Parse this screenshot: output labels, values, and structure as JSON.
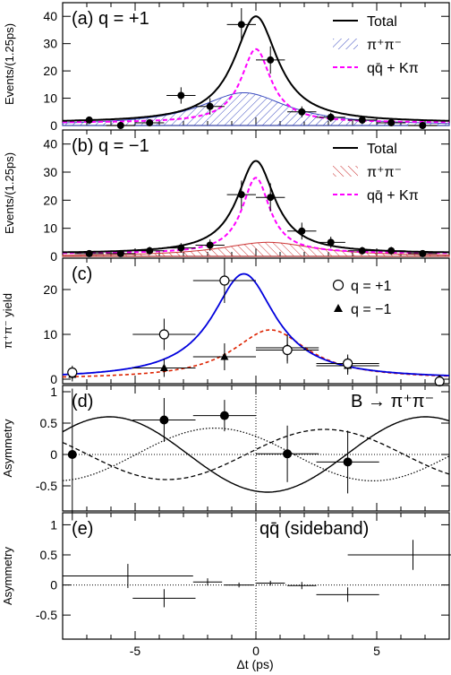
{
  "figure": {
    "xlabel": "Δt (ps)",
    "x_ticks": [
      "-5",
      "0",
      "5"
    ],
    "colors": {
      "total": "#000000",
      "pipi": "#3b4cc0",
      "pipi_b": "#cc3333",
      "bkg": "#ff00ff",
      "q_plus": "#0000dd",
      "q_minus": "#dd2200"
    }
  },
  "chart_data": [
    {
      "id": "a",
      "type": "scatter",
      "title": "(a) q = +1",
      "ylabel": "Events/(1.25ps)",
      "xlim": [
        -8,
        8
      ],
      "ylim": [
        0,
        45
      ],
      "y_ticks": [
        "0",
        "10",
        "20",
        "30",
        "40"
      ],
      "legend": {
        "position": "top-right",
        "entries": [
          "Total",
          "π⁺π⁻",
          "qq̄ + Kπ"
        ]
      },
      "points": [
        {
          "x": -6.9,
          "y": 2,
          "ex": 0.6,
          "ey": 1
        },
        {
          "x": -5.6,
          "y": 0,
          "ex": 0.6,
          "ey": 0.6
        },
        {
          "x": -4.4,
          "y": 1,
          "ex": 0.6,
          "ey": 1
        },
        {
          "x": -3.1,
          "y": 11,
          "ex": 0.6,
          "ey": 3
        },
        {
          "x": -1.9,
          "y": 7,
          "ex": 0.6,
          "ey": 3
        },
        {
          "x": -0.6,
          "y": 37,
          "ex": 0.6,
          "ey": 6
        },
        {
          "x": 0.6,
          "y": 24,
          "ex": 0.6,
          "ey": 5
        },
        {
          "x": 1.9,
          "y": 5,
          "ex": 0.6,
          "ey": 2
        },
        {
          "x": 3.1,
          "y": 3,
          "ex": 0.6,
          "ey": 1.7
        },
        {
          "x": 4.4,
          "y": 2,
          "ex": 0.6,
          "ey": 1.4
        },
        {
          "x": 5.6,
          "y": 1,
          "ex": 0.6,
          "ey": 1
        },
        {
          "x": 6.9,
          "y": 0,
          "ex": 0.6,
          "ey": 0.6
        }
      ],
      "curves": {
        "total": {
          "peak": 39,
          "center": 0,
          "width": 1.1,
          "base": 1
        },
        "pipi": {
          "peak": 12,
          "center": -0.5,
          "width": 2.2,
          "base": 0
        },
        "bkg": {
          "peak": 27,
          "center": 0,
          "width": 0.75,
          "base": 1
        }
      }
    },
    {
      "id": "b",
      "type": "scatter",
      "title": "(b) q = −1",
      "ylabel": "Events/(1.25ps)",
      "xlim": [
        -8,
        8
      ],
      "ylim": [
        0,
        45
      ],
      "y_ticks": [
        "0",
        "10",
        "20",
        "30",
        "40"
      ],
      "legend": {
        "position": "top-right",
        "entries": [
          "Total",
          "π⁺π⁻",
          "qq̄ + Kπ"
        ]
      },
      "points": [
        {
          "x": -6.9,
          "y": 1,
          "ex": 0.6,
          "ey": 1
        },
        {
          "x": -5.6,
          "y": 1,
          "ex": 0.6,
          "ey": 1
        },
        {
          "x": -4.4,
          "y": 2,
          "ex": 0.6,
          "ey": 1.4
        },
        {
          "x": -3.1,
          "y": 3,
          "ex": 0.6,
          "ey": 1.7
        },
        {
          "x": -1.9,
          "y": 4,
          "ex": 0.6,
          "ey": 2
        },
        {
          "x": -0.6,
          "y": 22,
          "ex": 0.6,
          "ey": 5
        },
        {
          "x": 0.6,
          "y": 21,
          "ex": 0.6,
          "ey": 5
        },
        {
          "x": 1.9,
          "y": 9,
          "ex": 0.6,
          "ey": 3
        },
        {
          "x": 3.1,
          "y": 5,
          "ex": 0.6,
          "ey": 2
        },
        {
          "x": 4.4,
          "y": 2,
          "ex": 0.6,
          "ey": 1.4
        },
        {
          "x": 5.6,
          "y": 2,
          "ex": 0.6,
          "ey": 1.4
        },
        {
          "x": 6.9,
          "y": 1,
          "ex": 0.6,
          "ey": 1
        }
      ],
      "curves": {
        "total": {
          "peak": 33,
          "center": 0,
          "width": 0.95,
          "base": 1
        },
        "pipi": {
          "peak": 5,
          "center": 0.5,
          "width": 2.4,
          "base": 0
        },
        "bkg": {
          "peak": 27,
          "center": 0,
          "width": 0.7,
          "base": 1
        }
      }
    },
    {
      "id": "c",
      "type": "scatter",
      "title": "(c)",
      "ylabel": "π⁺π⁻ yield",
      "xlim": [
        -8,
        8
      ],
      "ylim": [
        -1,
        27
      ],
      "y_ticks": [
        "0",
        "10",
        "20"
      ],
      "legend": {
        "position": "top-right",
        "entries": [
          "q = +1",
          "q = −1"
        ]
      },
      "points_open": [
        {
          "x": -7.6,
          "y": 1.5,
          "ex": 0,
          "ey": 1.5
        },
        {
          "x": -3.8,
          "y": 10,
          "ex": 1.3,
          "ey": 3.5
        },
        {
          "x": -1.3,
          "y": 22,
          "ex": 1.3,
          "ey": 5
        },
        {
          "x": 1.3,
          "y": 6.5,
          "ex": 1.3,
          "ey": 3
        },
        {
          "x": 3.8,
          "y": 3.5,
          "ex": 1.3,
          "ey": 2
        },
        {
          "x": 7.6,
          "y": -0.5,
          "ex": 0,
          "ey": 0.8
        }
      ],
      "points_filled": [
        {
          "x": -7.6,
          "y": 1,
          "ex": 0,
          "ey": 1.5
        },
        {
          "x": -3.8,
          "y": 2.5,
          "ex": 1.3,
          "ey": 2
        },
        {
          "x": -1.3,
          "y": 5,
          "ex": 1.3,
          "ey": 3
        },
        {
          "x": 1.3,
          "y": 7,
          "ex": 1.3,
          "ey": 3
        },
        {
          "x": 3.8,
          "y": 3,
          "ex": 1.3,
          "ey": 2
        },
        {
          "x": 7.6,
          "y": 0,
          "ex": 0,
          "ey": 0.8
        }
      ],
      "curves": {
        "q_plus": {
          "peak": 23.5,
          "center": -0.5,
          "width": 1.6,
          "base": 0
        },
        "q_minus": {
          "peak": 11,
          "center": 0.6,
          "width": 1.9,
          "base": 0
        }
      }
    },
    {
      "id": "d",
      "type": "scatter",
      "title": "(d)",
      "annotation": "B → π⁺π⁻",
      "ylabel": "Asymmetry",
      "xlim": [
        -8,
        8
      ],
      "ylim": [
        -0.9,
        1.1
      ],
      "y_ticks": [
        "-0.5",
        "0",
        "0.5",
        "1"
      ],
      "points": [
        {
          "x": -7.6,
          "y": 0,
          "ex": 0,
          "ey": 1.05
        },
        {
          "x": -3.8,
          "y": 0.55,
          "ex": 1.3,
          "ey": 0.35
        },
        {
          "x": -1.3,
          "y": 0.62,
          "ex": 1.3,
          "ey": 0.25
        },
        {
          "x": 1.3,
          "y": 0.01,
          "ex": 1.3,
          "ey": 0.45
        },
        {
          "x": 3.8,
          "y": -0.12,
          "ex": 1.3,
          "ey": 0.5
        },
        {
          "x": 7.6,
          "y": 0,
          "ex": 0,
          "ey": 0
        }
      ],
      "curves": {
        "solid": {
          "amplitude": 0.6,
          "omega": 0.48,
          "phase": -1.8
        },
        "dashed": {
          "amplitude": 0.4,
          "omega": 0.48,
          "phase": 0.2
        },
        "dotted": {
          "amplitude": 0.42,
          "omega": 0.48,
          "phase": -3.9
        }
      }
    },
    {
      "id": "e",
      "type": "scatter",
      "title": "(e)",
      "annotation": "qq̄ (sideband)",
      "ylabel": "Asymmetry",
      "xlim": [
        -8,
        8
      ],
      "ylim": [
        -0.9,
        1.2
      ],
      "y_ticks": [
        "-0.5",
        "0",
        "0.5",
        "1"
      ],
      "points": [
        {
          "x": -5.3,
          "y": 0.15,
          "ex": 2.7,
          "ey": 0.2
        },
        {
          "x": -3.8,
          "y": -0.22,
          "ex": 1.3,
          "ey": 0.15
        },
        {
          "x": -2.0,
          "y": 0.05,
          "ex": 0.6,
          "ey": 0.06
        },
        {
          "x": -0.7,
          "y": 0.0,
          "ex": 0.6,
          "ey": 0.04
        },
        {
          "x": 0.6,
          "y": 0.03,
          "ex": 0.6,
          "ey": 0.04
        },
        {
          "x": 1.9,
          "y": -0.01,
          "ex": 0.6,
          "ey": 0.06
        },
        {
          "x": 3.8,
          "y": -0.16,
          "ex": 1.3,
          "ey": 0.12
        },
        {
          "x": 6.5,
          "y": 0.5,
          "ex": 2.7,
          "ey": 0.25
        }
      ]
    }
  ]
}
